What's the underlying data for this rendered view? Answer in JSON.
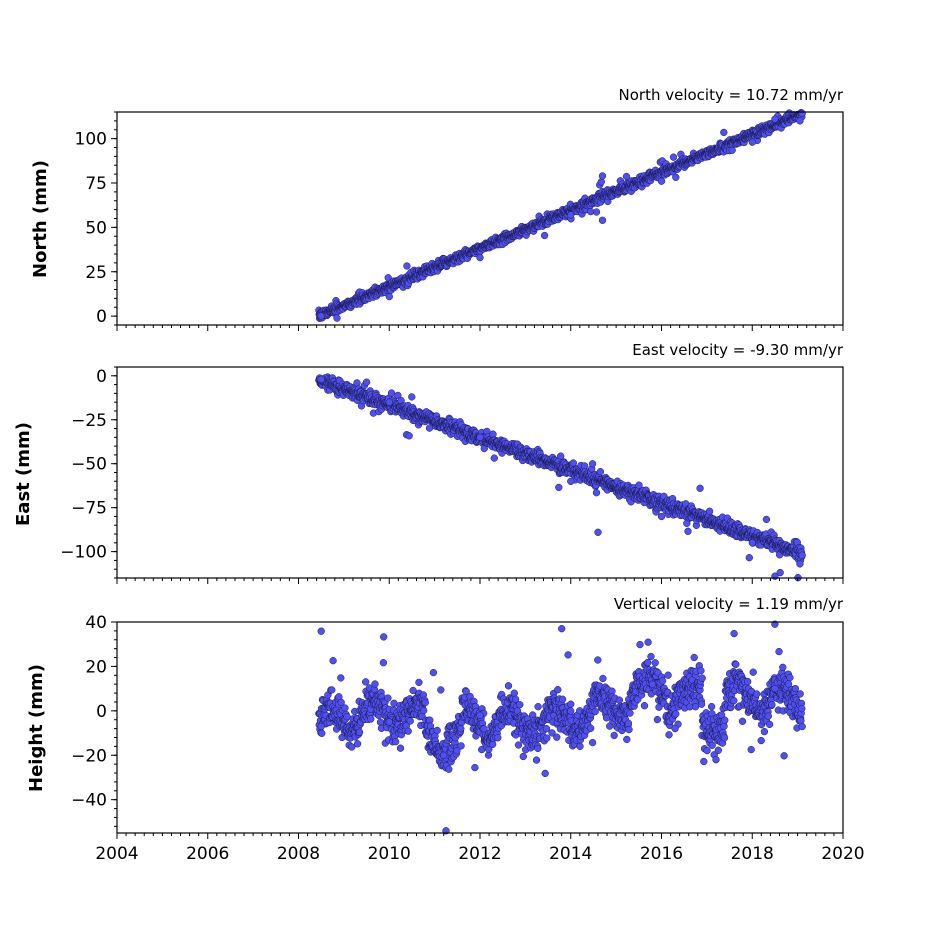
{
  "chart_data": [
    {
      "type": "scatter",
      "title": "North velocity = 10.72 mm/yr",
      "xlabel": "",
      "ylabel": "North (mm)",
      "xlim": [
        2004,
        2020
      ],
      "ylim": [
        -5,
        115
      ],
      "yticks": [
        0,
        25,
        50,
        75,
        100
      ],
      "yticklabels": [
        "0",
        "25",
        "50",
        "75",
        "100"
      ],
      "velocity_mm_per_yr": 10.72,
      "start_year": 2008.45,
      "end_year": 2019.1,
      "start_value": 0,
      "scatter_spread_mm": 2,
      "sample_points": [
        [
          2008.5,
          0
        ],
        [
          2010,
          11
        ],
        [
          2012,
          33
        ],
        [
          2014,
          57
        ],
        [
          2016,
          76
        ],
        [
          2018,
          98
        ],
        [
          2019.05,
          110
        ],
        [
          2014.7,
          79
        ],
        [
          2014.7,
          54
        ],
        [
          2018.5,
          111
        ]
      ],
      "grid": false,
      "legend": "none",
      "colors": {
        "fill": "#5050f0",
        "edge": "#1a1a50"
      }
    },
    {
      "type": "scatter",
      "title": "East velocity = -9.30 mm/yr",
      "xlabel": "",
      "ylabel": "East (mm)",
      "xlim": [
        2004,
        2020
      ],
      "ylim": [
        -115,
        5
      ],
      "yticks": [
        0,
        -25,
        -50,
        -75,
        -100
      ],
      "yticklabels": [
        "0",
        "−25",
        "−50",
        "−75",
        "−100"
      ],
      "velocity_mm_per_yr": -9.3,
      "start_year": 2008.45,
      "end_year": 2019.1,
      "start_value": -2,
      "scatter_spread_mm": 3,
      "sample_points": [
        [
          2008.5,
          -2
        ],
        [
          2010,
          -15
        ],
        [
          2012,
          -35
        ],
        [
          2014,
          -60
        ],
        [
          2016,
          -80
        ],
        [
          2018,
          -95
        ],
        [
          2019.05,
          -107
        ],
        [
          2016.85,
          -64
        ],
        [
          2018.5,
          -114
        ],
        [
          2014.6,
          -89
        ]
      ],
      "grid": false,
      "legend": "none",
      "colors": {
        "fill": "#5050f0",
        "edge": "#1a1a50"
      }
    },
    {
      "type": "scatter",
      "title": "Vertical velocity = 1.19 mm/yr",
      "xlabel": "",
      "ylabel": "Height (mm)",
      "xlim": [
        2004,
        2020
      ],
      "ylim": [
        -55,
        40
      ],
      "yticks": [
        40,
        20,
        0,
        -20,
        -40
      ],
      "yticklabels": [
        "40",
        "20",
        "0",
        "−20",
        "−40"
      ],
      "xticks": [
        2004,
        2006,
        2008,
        2010,
        2012,
        2014,
        2016,
        2018,
        2020
      ],
      "xticklabels": [
        "2004",
        "2006",
        "2008",
        "2010",
        "2012",
        "2014",
        "2016",
        "2018",
        "2020"
      ],
      "velocity_mm_per_yr": 1.19,
      "start_year": 2008.45,
      "end_year": 2019.1,
      "start_value": -7,
      "scatter_spread_mm": 7,
      "sample_points": [
        [
          2008.5,
          -7
        ],
        [
          2010,
          -5
        ],
        [
          2011.2,
          -20
        ],
        [
          2012,
          -2
        ],
        [
          2014,
          3
        ],
        [
          2015.8,
          12
        ],
        [
          2016.3,
          -8
        ],
        [
          2017.2,
          -22
        ],
        [
          2018.5,
          10
        ],
        [
          2013.8,
          37
        ],
        [
          2018.5,
          39
        ],
        [
          2011.25,
          -54
        ]
      ],
      "grid": false,
      "legend": "none",
      "colors": {
        "fill": "#5050f0",
        "edge": "#1a1a50"
      }
    }
  ]
}
